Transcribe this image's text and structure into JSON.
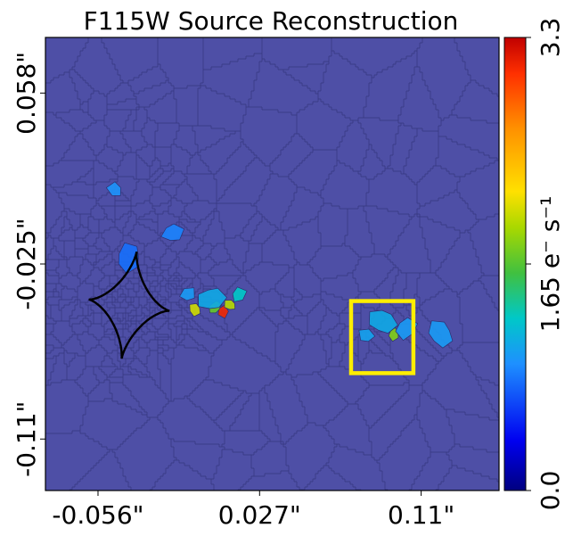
{
  "chart_data": {
    "type": "heatmap",
    "title": "F115W Source Reconstruction",
    "xlabel": "",
    "ylabel": "",
    "x_ticks": [
      "-0.056\"",
      "0.027\"",
      "0.11\""
    ],
    "x_tick_values": [
      -0.056,
      0.027,
      0.11
    ],
    "y_ticks": [
      "0.058\"",
      "-0.025\"",
      "-0.11\""
    ],
    "y_tick_values": [
      0.058,
      -0.025,
      -0.11
    ],
    "xlim": [
      -0.083,
      0.15
    ],
    "ylim": [
      -0.135,
      0.085
    ],
    "colorbar": {
      "label": "e⁻ s⁻¹",
      "ticks": [
        "0.0",
        "1.65",
        "3.3"
      ],
      "tick_values": [
        0.0,
        1.65,
        3.3
      ],
      "range": [
        0.0,
        3.3
      ],
      "colors": [
        "#000080",
        "#0000f0",
        "#1e90ff",
        "#00c8c8",
        "#40c040",
        "#a8d800",
        "#ffe000",
        "#ff9000",
        "#ff3000",
        "#c00000"
      ]
    },
    "background_value": 0.28,
    "grid": false,
    "cells": [
      {
        "x": 0.008,
        "y": -0.048,
        "value": 3.0
      },
      {
        "x": 0.012,
        "y": -0.045,
        "value": 1.9
      },
      {
        "x": 0.004,
        "y": -0.046,
        "value": 1.6
      },
      {
        "x": 0.016,
        "y": -0.04,
        "value": 1.1
      },
      {
        "x": -0.006,
        "y": -0.047,
        "value": 2.0
      },
      {
        "x": 0.002,
        "y": -0.042,
        "value": 0.9
      },
      {
        "x": -0.01,
        "y": -0.04,
        "value": 0.8
      },
      {
        "x": 0.096,
        "y": -0.059,
        "value": 1.7
      },
      {
        "x": 0.09,
        "y": -0.053,
        "value": 0.9
      },
      {
        "x": 0.082,
        "y": -0.06,
        "value": 0.85
      },
      {
        "x": 0.102,
        "y": -0.056,
        "value": 0.8
      },
      {
        "x": 0.12,
        "y": -0.059,
        "value": 0.8
      },
      {
        "x": -0.047,
        "y": 0.011,
        "value": 0.75
      },
      {
        "x": -0.018,
        "y": -0.01,
        "value": 0.7
      },
      {
        "x": -0.04,
        "y": -0.022,
        "value": 0.65
      }
    ],
    "annotations": [
      {
        "type": "caustic",
        "shape": "astroid",
        "center": [
          -0.04,
          -0.045
        ],
        "half_width": 0.02,
        "half_height": 0.025,
        "color": "#000000"
      },
      {
        "type": "rectangle",
        "x_range": [
          0.074,
          0.106
        ],
        "y_range": [
          -0.078,
          -0.043
        ],
        "color": "#ffee00"
      }
    ]
  }
}
